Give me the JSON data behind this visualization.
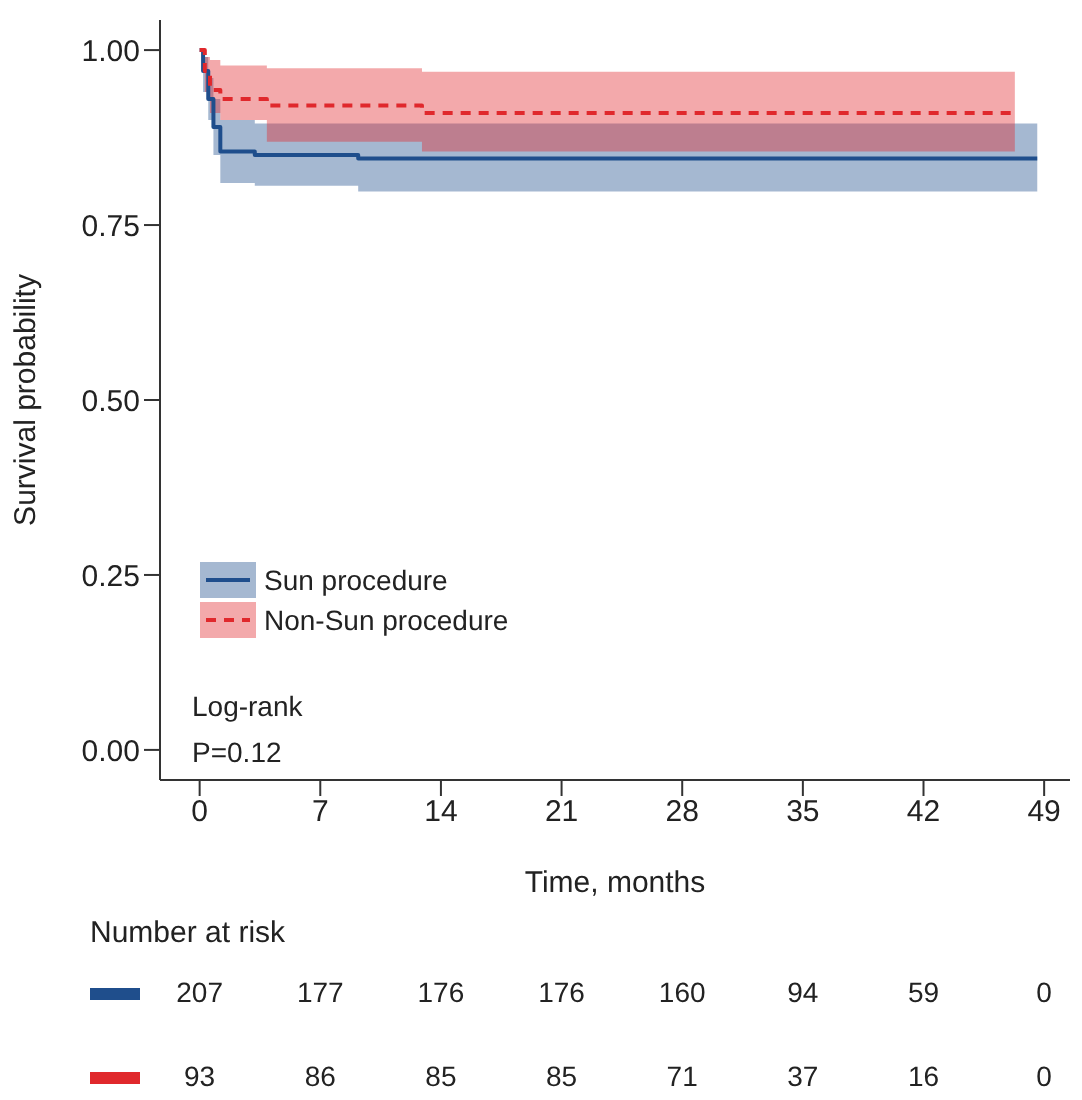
{
  "chart_data": {
    "type": "step",
    "xlabel": "Time, months",
    "ylabel": "Survival probability",
    "xlim": [
      -2.3,
      50.5
    ],
    "xticks": [
      0,
      7,
      14,
      21,
      28,
      35,
      42,
      49
    ],
    "ylim": [
      -0.043,
      1.043
    ],
    "yticks": [
      {
        "value": 0,
        "label": "0.00"
      },
      {
        "value": 0.25,
        "label": "0.25"
      },
      {
        "value": 0.5,
        "label": "0.50"
      },
      {
        "value": 0.75,
        "label": "0.75"
      },
      {
        "value": 1,
        "label": "1.00"
      }
    ],
    "grid": false,
    "legend": "bottom left",
    "series": [
      {
        "name": "Sun procedure",
        "color": "#1f4e8c",
        "line_style": "solid",
        "x": [
          0,
          0.2,
          0.5,
          0.8,
          1.2,
          3.2,
          9.2,
          48.6
        ],
        "values": [
          1,
          0.97,
          0.93,
          0.89,
          0.855,
          0.85,
          0.845,
          0.845
        ],
        "lower": [
          1,
          0.94,
          0.9,
          0.85,
          0.81,
          0.806,
          0.798,
          0.798
        ],
        "upper": [
          1,
          0.99,
          0.96,
          0.93,
          0.9,
          0.895,
          0.895,
          0.895
        ]
      },
      {
        "name": "Non-Sun procedure",
        "color": "#e0282c",
        "line_style": "dashed",
        "x": [
          0,
          0.3,
          0.6,
          1.2,
          3.9,
          12.9,
          47.3
        ],
        "values": [
          1,
          0.97,
          0.943,
          0.93,
          0.921,
          0.91,
          0.91
        ],
        "lower": [
          1,
          0.94,
          0.91,
          0.9,
          0.869,
          0.855,
          0.855
        ],
        "upper": [
          1,
          0.99,
          0.986,
          0.978,
          0.974,
          0.969,
          0.969
        ]
      }
    ],
    "annotations": [
      "Log-rank",
      "P=0.12",
      "Number at risk",
      "207",
      "177",
      "176",
      "176",
      "160",
      "94",
      "59",
      "0",
      "93",
      "86",
      "85",
      "85",
      "71",
      "37",
      "16",
      "0"
    ]
  }
}
